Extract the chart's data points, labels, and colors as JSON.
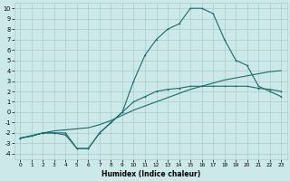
{
  "xlabel": "Humidex (Indice chaleur)",
  "bg_color": "#cde8e8",
  "grid_color": "#a8cccc",
  "line_color": "#1a6b6b",
  "xlim": [
    -0.5,
    23.5
  ],
  "ylim": [
    -4.5,
    10.5
  ],
  "xticks": [
    0,
    1,
    2,
    3,
    4,
    5,
    6,
    7,
    8,
    9,
    10,
    11,
    12,
    13,
    14,
    15,
    16,
    17,
    18,
    19,
    20,
    21,
    22,
    23
  ],
  "yticks": [
    -4,
    -3,
    -2,
    -1,
    0,
    1,
    2,
    3,
    4,
    5,
    6,
    7,
    8,
    9,
    10
  ],
  "series": [
    {
      "x": [
        0,
        1,
        2,
        3,
        4,
        5,
        6,
        7,
        8,
        9,
        10,
        11,
        12,
        13,
        14,
        15,
        16,
        17,
        18,
        19,
        20,
        21,
        22,
        23
      ],
      "y": [
        -2.5,
        -2.3,
        -2.0,
        -1.8,
        -1.7,
        -1.6,
        -1.5,
        -1.2,
        -0.8,
        -0.3,
        0.2,
        0.6,
        1.0,
        1.4,
        1.8,
        2.2,
        2.5,
        2.8,
        3.1,
        3.3,
        3.5,
        3.7,
        3.9,
        4.0
      ],
      "marker": false
    },
    {
      "x": [
        0,
        1,
        2,
        3,
        4,
        5,
        6,
        7,
        8,
        9,
        10,
        11,
        12,
        13,
        14,
        15,
        16,
        17,
        18,
        19,
        20,
        21,
        22,
        23
      ],
      "y": [
        -2.5,
        -2.3,
        -2.0,
        -2.0,
        -2.2,
        -3.5,
        -3.5,
        -2.0,
        -1.0,
        0.0,
        1.0,
        1.5,
        2.0,
        2.2,
        2.3,
        2.5,
        2.5,
        2.5,
        2.5,
        2.5,
        2.5,
        2.3,
        2.2,
        2.0
      ],
      "marker": true
    },
    {
      "x": [
        0,
        2,
        3,
        4,
        5,
        6,
        7,
        8,
        9,
        10,
        11,
        12,
        13,
        14,
        15,
        16,
        17,
        18,
        19,
        20,
        21,
        22,
        23
      ],
      "y": [
        -2.5,
        -2.0,
        -2.0,
        -2.0,
        -3.5,
        -3.5,
        -2.0,
        -1.0,
        0.0,
        3.0,
        5.5,
        7.0,
        8.0,
        8.5,
        10.0,
        10.0,
        9.5,
        7.0,
        5.0,
        4.5,
        2.5,
        2.0,
        1.5
      ],
      "marker": true
    }
  ]
}
